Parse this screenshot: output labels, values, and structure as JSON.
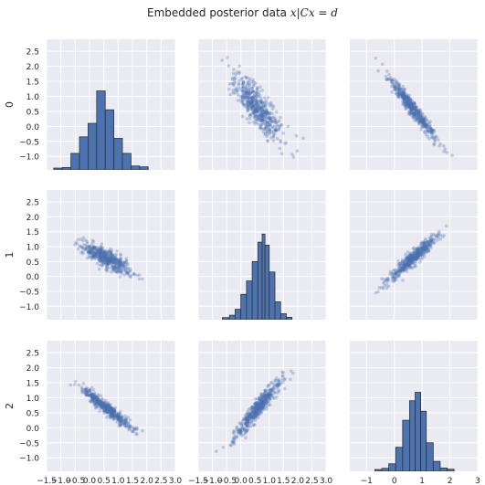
{
  "chart_data": {
    "type": "scatter",
    "title_prefix": "Embedded posterior data",
    "title_math": "x|Cx = d",
    "variables": [
      "0",
      "1",
      "2"
    ],
    "grid": true,
    "xlim": [
      -1.5,
      3.0
    ],
    "ylim": [
      -1.45,
      2.9
    ],
    "col_xlim": [
      [
        -1.5,
        3.0
      ],
      [
        -1.5,
        3.0
      ],
      [
        -1.6,
        3.0
      ]
    ],
    "row_yticks": [
      -1.0,
      -0.5,
      0.0,
      0.5,
      1.0,
      1.5,
      2.0,
      2.5
    ],
    "row_ytick_labels": [
      "−1.0",
      "−0.5",
      "0.0",
      "0.5",
      "1.0",
      "1.5",
      "2.0",
      "2.5"
    ],
    "col_xticks": [
      [
        -1.5,
        -1.0,
        -0.5,
        0.0,
        0.5,
        1.0,
        1.5,
        2.0,
        2.5,
        3.0
      ],
      [
        -1.5,
        -1.0,
        -0.5,
        0.0,
        0.5,
        1.0,
        1.5,
        2.0,
        2.5,
        3.0
      ],
      [
        -1.0,
        0.0,
        1.0,
        2.0,
        3.0
      ]
    ],
    "col_xtick_labels": [
      [
        "−1.5",
        "−1.0",
        "−0.5",
        "0.0",
        "0.5",
        "1.0",
        "1.5",
        "2.0",
        "2.5",
        "3.0"
      ],
      [
        "−1.5",
        "−1.0",
        "−0.5",
        "0.0",
        "0.5",
        "1.0",
        "1.5",
        "2.0",
        "2.5",
        "3.0"
      ],
      [
        "−1",
        "0",
        "1",
        "2",
        "3"
      ]
    ],
    "scatter_points": 500,
    "point_color": "#4c72b0",
    "bar_color": "#4c72b0",
    "background_color": "#eaeaf2",
    "histograms": [
      {
        "variable": "0",
        "bin_edges": [
          -1.25,
          -0.95,
          -0.65,
          -0.35,
          -0.05,
          0.25,
          0.55,
          0.85,
          1.15,
          1.45,
          1.75,
          2.05,
          2.35
        ],
        "heights": [
          0.01,
          0.03,
          0.5,
          1.05,
          1.5,
          2.58,
          1.95,
          1.0,
          0.5,
          0.08,
          0.05,
          0.0
        ]
      },
      {
        "variable": "1",
        "bin_edges": [
          -0.65,
          -0.4,
          -0.2,
          0.0,
          0.2,
          0.4,
          0.6,
          0.75,
          0.85,
          1.0,
          1.2,
          1.4,
          1.6,
          1.8
        ],
        "heights": [
          0.02,
          0.1,
          0.3,
          0.8,
          1.25,
          1.9,
          2.55,
          2.82,
          2.45,
          1.55,
          0.55,
          0.15,
          0.03
        ]
      },
      {
        "variable": "2",
        "bin_edges": [
          -0.7,
          -0.45,
          -0.2,
          0.05,
          0.3,
          0.55,
          0.75,
          0.95,
          1.15,
          1.4,
          1.65,
          1.9,
          2.15
        ],
        "heights": [
          0.01,
          0.05,
          0.2,
          0.75,
          1.65,
          2.3,
          2.58,
          1.95,
          0.9,
          0.28,
          0.06,
          0.02
        ]
      }
    ],
    "pairs": [
      {
        "x": "1",
        "y": "0",
        "x_center": 0.6,
        "y_center": 0.6,
        "relation": "negative",
        "slope": -1.0,
        "spread": 0.3
      },
      {
        "x": "2",
        "y": "0",
        "x_center": 0.65,
        "y_center": 0.6,
        "relation": "negative",
        "slope": -1.15,
        "spread": 0.13
      },
      {
        "x": "0",
        "y": "1",
        "x_center": 0.6,
        "y_center": 0.6,
        "relation": "negative",
        "slope": -0.5,
        "spread": 0.15
      },
      {
        "x": "2",
        "y": "1",
        "x_center": 0.65,
        "y_center": 0.6,
        "relation": "positive",
        "slope": 0.8,
        "spread": 0.12
      },
      {
        "x": "0",
        "y": "2",
        "x_center": 0.6,
        "y_center": 0.65,
        "relation": "negative",
        "slope": -0.75,
        "spread": 0.1
      },
      {
        "x": "1",
        "y": "2",
        "x_center": 0.6,
        "y_center": 0.65,
        "relation": "positive",
        "slope": 1.1,
        "spread": 0.15
      }
    ]
  }
}
